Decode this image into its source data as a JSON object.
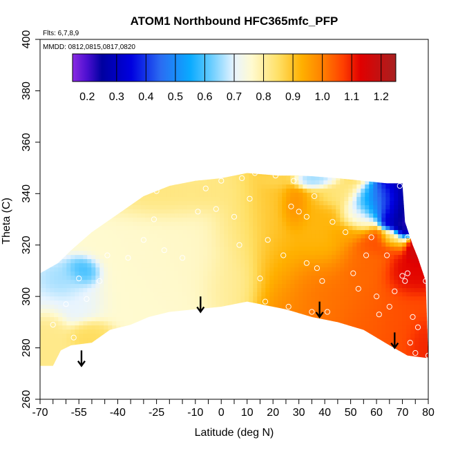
{
  "chart_data": {
    "type": "heatmap",
    "title": "ATOM1 Northbound HFC365mfc_PFP",
    "xlabel": "Latitude (deg N)",
    "ylabel": "Theta (C)",
    "xlim": [
      -70,
      80
    ],
    "ylim": [
      260,
      400
    ],
    "x_ticks": [
      -70,
      -55,
      -40,
      -25,
      -10,
      0,
      10,
      20,
      30,
      40,
      50,
      60,
      70,
      80
    ],
    "x_tick_labels": [
      "-70",
      "-55",
      "-40",
      "-25",
      "-10",
      "0",
      "10",
      "20",
      "30",
      "40",
      "50",
      "60",
      "70",
      "80"
    ],
    "x_minor_ticks": [
      -65,
      -60,
      -50,
      -45,
      -35,
      -30,
      -20,
      -15,
      -5,
      5,
      15,
      25,
      35,
      45,
      55,
      65,
      75
    ],
    "y_ticks": [
      260,
      280,
      300,
      320,
      340,
      360,
      380,
      400
    ],
    "y_tick_labels": [
      "260",
      "280",
      "300",
      "320",
      "340",
      "360",
      "380",
      "400"
    ],
    "flights_note": "Flts: 6,7,8,9",
    "dates_note": "MMDD: 0812,0815,0817,0820",
    "colorbar": {
      "range": [
        0.15,
        1.25
      ],
      "ticks": [
        0.2,
        0.3,
        0.4,
        0.5,
        0.6,
        0.7,
        0.8,
        0.9,
        1.0,
        1.1,
        1.2
      ],
      "tick_labels": [
        "0.2",
        "0.3",
        "0.4",
        "0.5",
        "0.6",
        "0.7",
        "0.8",
        "0.9",
        "1.0",
        "1.1",
        "1.2"
      ],
      "dividers": [
        0.3,
        0.4,
        0.5,
        0.6,
        0.7,
        0.8,
        0.9,
        1.0,
        1.1,
        1.2
      ],
      "stops": [
        {
          "value": 0.15,
          "color": "#8a2be2"
        },
        {
          "value": 0.2,
          "color": "#4b0fd0"
        },
        {
          "value": 0.25,
          "color": "#0000a0"
        },
        {
          "value": 0.35,
          "color": "#0000e0"
        },
        {
          "value": 0.45,
          "color": "#2a6cf2"
        },
        {
          "value": 0.55,
          "color": "#0aaaff"
        },
        {
          "value": 0.62,
          "color": "#66ccff"
        },
        {
          "value": 0.7,
          "color": "#e8f4ff"
        },
        {
          "value": 0.76,
          "color": "#fffad0"
        },
        {
          "value": 0.85,
          "color": "#ffe066"
        },
        {
          "value": 0.93,
          "color": "#ffb000"
        },
        {
          "value": 1.0,
          "color": "#ff8000"
        },
        {
          "value": 1.07,
          "color": "#ff4000"
        },
        {
          "value": 1.13,
          "color": "#e00000"
        },
        {
          "value": 1.25,
          "color": "#a82020"
        }
      ]
    },
    "field": {
      "lower_boundary": [
        [
          -70,
          273
        ],
        [
          -65,
          273
        ],
        [
          -62,
          279
        ],
        [
          -58,
          281
        ],
        [
          -50,
          282
        ],
        [
          -43,
          287
        ],
        [
          -35,
          289
        ],
        [
          -28,
          292
        ],
        [
          -20,
          294
        ],
        [
          -10,
          295
        ],
        [
          0,
          296
        ],
        [
          10,
          298
        ],
        [
          15,
          297
        ],
        [
          25,
          295
        ],
        [
          35,
          292
        ],
        [
          45,
          290
        ],
        [
          55,
          287
        ],
        [
          65,
          281
        ],
        [
          72,
          277
        ],
        [
          80,
          276
        ]
      ],
      "upper_boundary": [
        [
          80,
          276
        ],
        [
          79,
          306
        ],
        [
          76,
          315
        ],
        [
          74,
          320
        ],
        [
          71,
          329
        ],
        [
          70,
          344
        ],
        [
          64,
          344
        ],
        [
          45,
          346
        ],
        [
          32,
          347
        ],
        [
          22,
          347
        ],
        [
          10,
          348
        ],
        [
          0,
          346
        ],
        [
          -10,
          345
        ],
        [
          -20,
          343
        ],
        [
          -30,
          339
        ],
        [
          -40,
          332
        ],
        [
          -50,
          325
        ],
        [
          -58,
          318
        ],
        [
          -63,
          313
        ],
        [
          -70,
          309
        ],
        [
          -70,
          273
        ]
      ],
      "blobs": [
        {
          "lat": -28,
          "theta": 308,
          "rlat": 22,
          "rtheta": 25,
          "value": 0.76
        },
        {
          "lat": -12,
          "theta": 318,
          "rlat": 22,
          "rtheta": 22,
          "value": 0.77
        },
        {
          "lat": -53,
          "theta": 309,
          "rlat": 6,
          "rtheta": 5,
          "value": 0.56
        },
        {
          "lat": -60,
          "theta": 305,
          "rlat": 7,
          "rtheta": 6,
          "value": 0.64
        },
        {
          "lat": -57,
          "theta": 300,
          "rlat": 11,
          "rtheta": 10,
          "value": 0.7
        },
        {
          "lat": -50,
          "theta": 285,
          "rlat": 8,
          "rtheta": 5,
          "value": 0.86
        },
        {
          "lat": -65,
          "theta": 283,
          "rlat": 6,
          "rtheta": 10,
          "value": 0.82
        },
        {
          "lat": -20,
          "theta": 338,
          "rlat": 18,
          "rtheta": 8,
          "value": 0.84
        },
        {
          "lat": -5,
          "theta": 340,
          "rlat": 10,
          "rtheta": 6,
          "value": 0.83
        },
        {
          "lat": 8,
          "theta": 325,
          "rlat": 12,
          "rtheta": 22,
          "value": 0.84
        },
        {
          "lat": 5,
          "theta": 305,
          "rlat": 12,
          "rtheta": 12,
          "value": 0.81
        },
        {
          "lat": 18,
          "theta": 330,
          "rlat": 10,
          "rtheta": 20,
          "value": 0.9
        },
        {
          "lat": 22,
          "theta": 310,
          "rlat": 10,
          "rtheta": 16,
          "value": 0.93
        },
        {
          "lat": 30,
          "theta": 300,
          "rlat": 16,
          "rtheta": 14,
          "value": 1.0
        },
        {
          "lat": 38,
          "theta": 325,
          "rlat": 14,
          "rtheta": 16,
          "value": 0.92
        },
        {
          "lat": 28,
          "theta": 334,
          "rlat": 5,
          "rtheta": 8,
          "value": 0.99
        },
        {
          "lat": 45,
          "theta": 300,
          "rlat": 16,
          "rtheta": 14,
          "value": 1.02
        },
        {
          "lat": 55,
          "theta": 313,
          "rlat": 10,
          "rtheta": 10,
          "value": 1.03
        },
        {
          "lat": 60,
          "theta": 292,
          "rlat": 14,
          "rtheta": 14,
          "value": 1.04
        },
        {
          "lat": 70,
          "theta": 290,
          "rlat": 10,
          "rtheta": 14,
          "value": 1.06
        },
        {
          "lat": 72,
          "theta": 308,
          "rlat": 8,
          "rtheta": 8,
          "value": 1.13
        },
        {
          "lat": 77,
          "theta": 283,
          "rlat": 5,
          "rtheta": 8,
          "value": 1.1
        },
        {
          "lat": 61,
          "theta": 320,
          "rlat": 10,
          "rtheta": 4,
          "value": 1.06
        },
        {
          "lat": 20,
          "theta": 345,
          "rlat": 6,
          "rtheta": 3,
          "value": 0.86
        },
        {
          "lat": 36,
          "theta": 345,
          "rlat": 7,
          "rtheta": 3,
          "value": 0.64
        },
        {
          "lat": 45,
          "theta": 339,
          "rlat": 8,
          "rtheta": 5,
          "value": 0.82
        },
        {
          "lat": 52,
          "theta": 332,
          "rlat": 6,
          "rtheta": 6,
          "value": 0.72
        },
        {
          "lat": 57,
          "theta": 336,
          "rlat": 7,
          "rtheta": 5,
          "value": 0.52
        },
        {
          "lat": 63,
          "theta": 337,
          "rlat": 5,
          "rtheta": 5,
          "value": 0.42
        },
        {
          "lat": 67,
          "theta": 335,
          "rlat": 5,
          "rtheta": 8,
          "value": 0.3
        },
        {
          "lat": 70,
          "theta": 332,
          "rlat": 3,
          "rtheta": 9,
          "value": 0.22
        },
        {
          "lat": 66,
          "theta": 322,
          "rlat": 4,
          "rtheta": 3,
          "value": 0.78
        },
        {
          "lat": 75,
          "theta": 318,
          "rlat": 4,
          "rtheta": 4,
          "value": 1.17
        },
        {
          "lat": 48,
          "theta": 324,
          "rlat": 6,
          "rtheta": 4,
          "value": 0.95
        }
      ]
    },
    "samples": [
      [
        -65,
        289
      ],
      [
        -60,
        297
      ],
      [
        -57,
        284
      ],
      [
        -55,
        307
      ],
      [
        -52,
        299
      ],
      [
        -47,
        306
      ],
      [
        -44,
        316
      ],
      [
        -36,
        315
      ],
      [
        -30,
        322
      ],
      [
        -26,
        330
      ],
      [
        -25,
        341
      ],
      [
        -22,
        318
      ],
      [
        -15,
        315
      ],
      [
        -9,
        333
      ],
      [
        -6,
        342
      ],
      [
        -2,
        334
      ],
      [
        0,
        345
      ],
      [
        5,
        331
      ],
      [
        7,
        320
      ],
      [
        8,
        346
      ],
      [
        11,
        338
      ],
      [
        13,
        348
      ],
      [
        15,
        307
      ],
      [
        17,
        298
      ],
      [
        18,
        322
      ],
      [
        21,
        347
      ],
      [
        24,
        316
      ],
      [
        26,
        296
      ],
      [
        27,
        335
      ],
      [
        28,
        345
      ],
      [
        30,
        333
      ],
      [
        33,
        313
      ],
      [
        33,
        331
      ],
      [
        35,
        294
      ],
      [
        36,
        339
      ],
      [
        37,
        311
      ],
      [
        39,
        306
      ],
      [
        41,
        294
      ],
      [
        43,
        329
      ],
      [
        48,
        325
      ],
      [
        51,
        309
      ],
      [
        53,
        303
      ],
      [
        56,
        316
      ],
      [
        58,
        323
      ],
      [
        60,
        300
      ],
      [
        61,
        293
      ],
      [
        64,
        316
      ],
      [
        65,
        296
      ],
      [
        67,
        302
      ],
      [
        69,
        343
      ],
      [
        70,
        308
      ],
      [
        71,
        306
      ],
      [
        72,
        323
      ],
      [
        72,
        309
      ],
      [
        73,
        282
      ],
      [
        74,
        292
      ],
      [
        75,
        278
      ],
      [
        76,
        288
      ],
      [
        79,
        306
      ],
      [
        80,
        277
      ]
    ],
    "arrows": [
      {
        "lat": -54,
        "theta_top": 279,
        "theta_tip": 273
      },
      {
        "lat": -8,
        "theta_top": 300,
        "theta_tip": 294
      },
      {
        "lat": 38,
        "theta_top": 298,
        "theta_tip": 292
      },
      {
        "lat": 67,
        "theta_top": 286,
        "theta_tip": 280
      }
    ]
  }
}
